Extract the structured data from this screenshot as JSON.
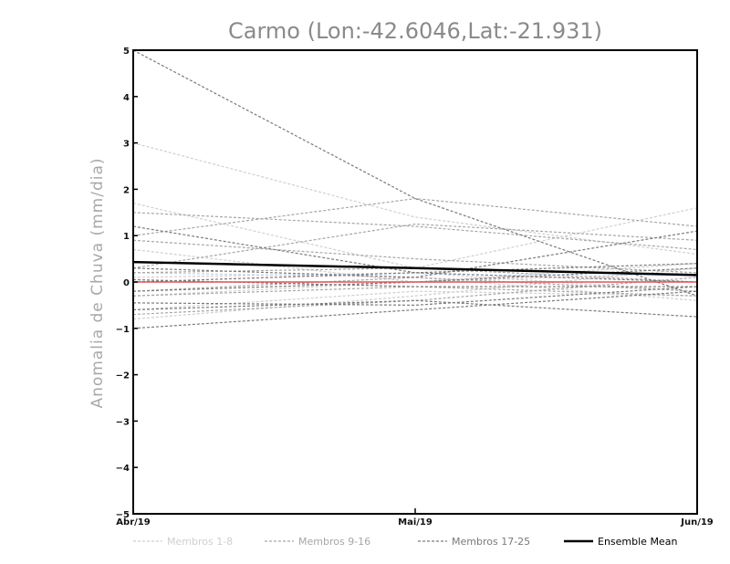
{
  "chart_data": {
    "type": "line",
    "title": "Carmo (Lon:-42.6046,Lat:-21.931)",
    "ylabel": "Anomalia de Chuva (mm/dia)",
    "xlabel": "",
    "categories": [
      "Abr/19",
      "Mai/19",
      "Jun/19"
    ],
    "ylim": [
      -5,
      5
    ],
    "yticks": [
      -5,
      -4,
      -3,
      -2,
      -1,
      0,
      1,
      2,
      3,
      4,
      5
    ],
    "colors": {
      "g1": "#cfcfcf",
      "g2": "#a6a6a6",
      "g3": "#7a7a7a",
      "mean": "#000000",
      "zero": "#e05555",
      "axis": "#000000"
    },
    "legend": [
      {
        "group": "g1",
        "label": "Membros 1-8"
      },
      {
        "group": "g2",
        "label": "Membros 9-16"
      },
      {
        "group": "g3",
        "label": "Membros 17-25"
      },
      {
        "group": "mean",
        "label": "Ensemble Mean"
      }
    ],
    "series": [
      {
        "name": "Membro 1",
        "group": "g1",
        "values": [
          3.0,
          1.4,
          0.6
        ]
      },
      {
        "name": "Membro 2",
        "group": "g1",
        "values": [
          1.7,
          0.3,
          1.6
        ]
      },
      {
        "name": "Membro 3",
        "group": "g1",
        "values": [
          0.7,
          0.0,
          0.4
        ]
      },
      {
        "name": "Membro 4",
        "group": "g1",
        "values": [
          0.2,
          0.1,
          -0.4
        ]
      },
      {
        "name": "Membro 5",
        "group": "g1",
        "values": [
          -0.3,
          0.0,
          0.2
        ]
      },
      {
        "name": "Membro 6",
        "group": "g1",
        "values": [
          -0.6,
          -0.2,
          -0.3
        ]
      },
      {
        "name": "Membro 7",
        "group": "g1",
        "values": [
          -0.8,
          -0.3,
          0.3
        ]
      },
      {
        "name": "Membro 8",
        "group": "g1",
        "values": [
          0.1,
          0.2,
          -0.2
        ]
      },
      {
        "name": "Membro 9",
        "group": "g2",
        "values": [
          1.5,
          1.2,
          0.7
        ]
      },
      {
        "name": "Membro 10",
        "group": "g2",
        "values": [
          1.0,
          1.8,
          1.2
        ]
      },
      {
        "name": "Membro 11",
        "group": "g2",
        "values": [
          0.3,
          1.25,
          0.9
        ]
      },
      {
        "name": "Membro 12",
        "group": "g2",
        "values": [
          0.2,
          0.3,
          0.0
        ]
      },
      {
        "name": "Membro 13",
        "group": "g2",
        "values": [
          -0.3,
          -0.1,
          -0.3
        ]
      },
      {
        "name": "Membro 14",
        "group": "g2",
        "values": [
          -0.7,
          -0.4,
          0.1
        ]
      },
      {
        "name": "Membro 15",
        "group": "g2",
        "values": [
          0.9,
          0.5,
          0.2
        ]
      },
      {
        "name": "Membro 16",
        "group": "g2",
        "values": [
          -0.2,
          0.1,
          -0.2
        ]
      },
      {
        "name": "Membro 17",
        "group": "g3",
        "values": [
          5.0,
          1.8,
          -0.3
        ]
      },
      {
        "name": "Membro 18",
        "group": "g3",
        "values": [
          1.2,
          0.2,
          0.0
        ]
      },
      {
        "name": "Membro 19",
        "group": "g3",
        "values": [
          0.3,
          0.1,
          1.1
        ]
      },
      {
        "name": "Membro 20",
        "group": "g3",
        "values": [
          0.05,
          -0.1,
          -0.1
        ]
      },
      {
        "name": "Membro 21",
        "group": "g3",
        "values": [
          -0.2,
          0.0,
          0.3
        ]
      },
      {
        "name": "Membro 22",
        "group": "g3",
        "values": [
          -0.6,
          -0.4,
          -0.75
        ]
      },
      {
        "name": "Membro 23",
        "group": "g3",
        "values": [
          -1.0,
          -0.6,
          -0.2
        ]
      },
      {
        "name": "Membro 24",
        "group": "g3",
        "values": [
          0.0,
          0.2,
          0.4
        ]
      },
      {
        "name": "Membro 25",
        "group": "g3",
        "values": [
          -0.45,
          -0.5,
          -0.1
        ]
      },
      {
        "name": "Ensemble Mean",
        "group": "mean",
        "values": [
          0.43,
          0.3,
          0.15
        ]
      }
    ]
  }
}
